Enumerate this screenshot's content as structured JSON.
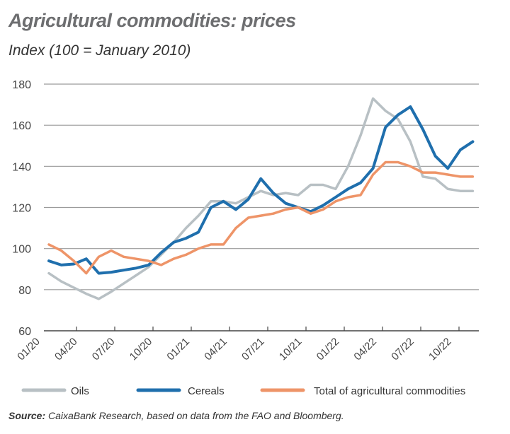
{
  "chart_data": {
    "type": "line",
    "title": "Agricultural commodities: prices",
    "subtitle": "Index (100 = January 2010)",
    "xlabel": "",
    "ylabel": "",
    "ylim": [
      60,
      180
    ],
    "yticks": [
      60,
      80,
      100,
      120,
      140,
      160,
      180
    ],
    "grid": true,
    "legend": "bottom",
    "x_start": "01/20",
    "x_end": "10/22",
    "x_frequency": "monthly",
    "xtick_labels": [
      "01/20",
      "04/20",
      "07/20",
      "10/20",
      "01/21",
      "04/21",
      "07/21",
      "10/21",
      "01/22",
      "04/22",
      "07/22",
      "10/22"
    ],
    "series": [
      {
        "name": "Oils",
        "color": "#b8c0c4",
        "values": [
          88,
          84,
          81,
          78,
          75.5,
          79,
          83,
          87,
          91,
          97,
          103,
          110,
          116,
          123,
          123,
          122,
          125,
          128,
          126,
          127,
          126,
          131,
          131,
          129,
          140,
          155,
          173,
          167,
          163,
          152,
          135,
          134,
          129,
          128,
          128
        ]
      },
      {
        "name": "Cereals",
        "color": "#1f6fad",
        "values": [
          94,
          92,
          92.5,
          95,
          88,
          88.5,
          89.5,
          90.5,
          92,
          98,
          103,
          105,
          108,
          120,
          123,
          119,
          124,
          134,
          127,
          122,
          120,
          118,
          121,
          125,
          129,
          132,
          139,
          159,
          165,
          169,
          158,
          145,
          139,
          148,
          152
        ]
      },
      {
        "name": "Total of agricultural commodities",
        "color": "#ee9468",
        "values": [
          102,
          99,
          94,
          88,
          96,
          99,
          96,
          95,
          94,
          92,
          95,
          97,
          100,
          102,
          102,
          110,
          115,
          116,
          117,
          119,
          120,
          117,
          119,
          123,
          125,
          126,
          136,
          142,
          142,
          140,
          137,
          137,
          136,
          135,
          135
        ]
      }
    ]
  },
  "source": {
    "label": "Source:",
    "text": " CaixaBank Research, based on data from the FAO and Bloomberg."
  }
}
